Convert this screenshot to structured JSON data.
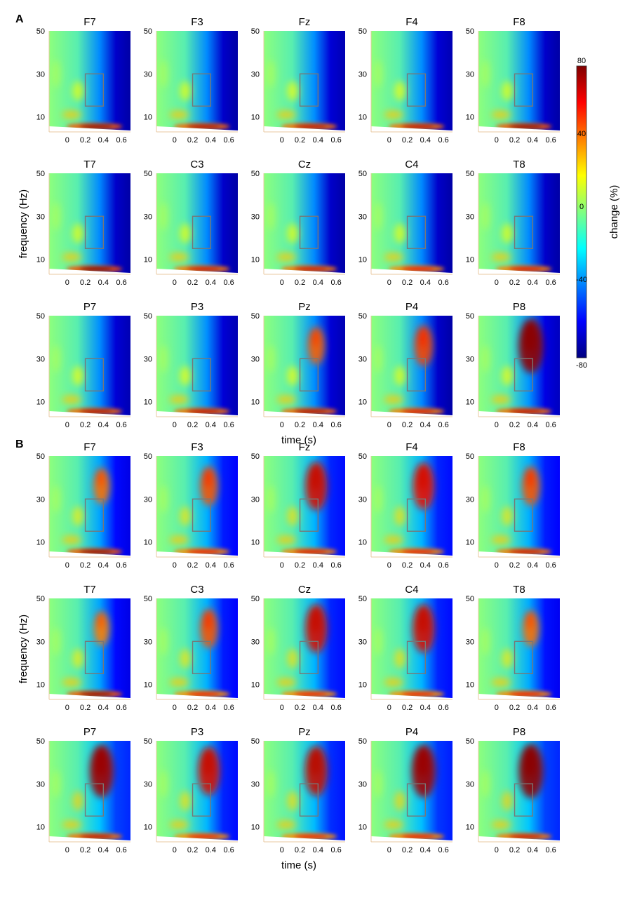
{
  "chart_data": {
    "type": "heatmap",
    "description_panels": [
      "A",
      "B"
    ],
    "xlabel": "time (s)",
    "ylabel": "frequency (Hz)",
    "x_ticks": [
      0,
      0.2,
      0.4,
      0.6
    ],
    "x_tick_labels": [
      "0",
      "0.2",
      "0.4",
      "0.6"
    ],
    "xlim": [
      -0.2,
      0.7
    ],
    "y_ticks": [
      10,
      30,
      50
    ],
    "y_tick_labels": [
      "10",
      "30",
      "50"
    ],
    "ylim": [
      3,
      50
    ],
    "roi": {
      "time": [
        0.2,
        0.4
      ],
      "frequency": [
        15,
        30
      ]
    },
    "colorbar": {
      "label": "change (%)",
      "range": [
        -80,
        80
      ],
      "ticks": [
        80,
        40,
        0,
        -40,
        -80
      ],
      "tick_labels": [
        "80",
        "40",
        "0",
        "-40",
        "-80"
      ],
      "colors": [
        "#00007f",
        "#0000ff",
        "#0080ff",
        "#00ffff",
        "#80ff80",
        "#ffff00",
        "#ff8000",
        "#ff0000",
        "#7f0000"
      ]
    },
    "electrode_rows": [
      [
        "F7",
        "F3",
        "Fz",
        "F4",
        "F8"
      ],
      [
        "T7",
        "C3",
        "Cz",
        "C4",
        "T8"
      ],
      [
        "P7",
        "P3",
        "Pz",
        "P4",
        "P8"
      ]
    ],
    "panels": [
      {
        "letter": "A",
        "late_high_freq_suppression": [
          [
            0.85,
            0.85,
            0.8,
            0.8,
            0.85
          ],
          [
            0.85,
            0.85,
            0.85,
            0.85,
            0.85
          ],
          [
            0.8,
            0.8,
            0.8,
            0.85,
            0.75
          ]
        ],
        "theta_power": [
          [
            0.9,
            0.8,
            0.75,
            0.75,
            0.9
          ],
          [
            0.95,
            0.7,
            0.7,
            0.6,
            0.65
          ],
          [
            0.8,
            0.75,
            0.8,
            0.65,
            0.75
          ]
        ],
        "gamma_power": [
          [
            0.0,
            0.0,
            0.0,
            0.0,
            0.0
          ],
          [
            0.0,
            0.0,
            0.0,
            0.0,
            0.0
          ],
          [
            0.0,
            0.0,
            0.4,
            0.5,
            0.95
          ]
        ]
      },
      {
        "letter": "B",
        "late_high_freq_suppression": [
          [
            0.6,
            0.5,
            0.45,
            0.45,
            0.5
          ],
          [
            0.6,
            0.5,
            0.45,
            0.45,
            0.55
          ],
          [
            0.3,
            0.45,
            0.4,
            0.35,
            0.3
          ]
        ],
        "theta_power": [
          [
            0.9,
            0.6,
            0.65,
            0.6,
            0.7
          ],
          [
            0.9,
            0.55,
            0.55,
            0.55,
            0.6
          ],
          [
            0.75,
            0.55,
            0.55,
            0.6,
            0.7
          ]
        ],
        "gamma_power": [
          [
            0.35,
            0.45,
            0.75,
            0.7,
            0.45
          ],
          [
            0.3,
            0.45,
            0.75,
            0.75,
            0.35
          ],
          [
            0.9,
            0.75,
            0.8,
            0.9,
            0.95
          ]
        ]
      }
    ]
  }
}
